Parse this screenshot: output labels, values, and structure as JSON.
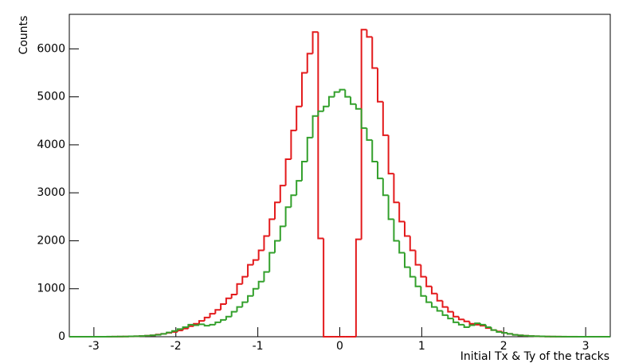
{
  "chart_data": {
    "type": "histogram",
    "xlabel": "Initial Tx & Ty of the tracks",
    "ylabel": "Counts",
    "bins": [
      -3.3,
      -3.234,
      -3.168,
      -3.102,
      -3.036,
      -2.97,
      -2.904,
      -2.838,
      -2.772,
      -2.706,
      -2.64,
      -2.574,
      -2.508,
      -2.442,
      -2.376,
      -2.31,
      -2.244,
      -2.178,
      -2.112,
      -2.046,
      -1.98,
      -1.914,
      -1.848,
      -1.782,
      -1.716,
      -1.65,
      -1.584,
      -1.518,
      -1.452,
      -1.386,
      -1.32,
      -1.254,
      -1.188,
      -1.122,
      -1.056,
      -0.99,
      -0.924,
      -0.858,
      -0.792,
      -0.726,
      -0.66,
      -0.594,
      -0.528,
      -0.462,
      -0.396,
      -0.33,
      -0.264,
      -0.198,
      -0.132,
      -0.066,
      0,
      0.066,
      0.132,
      0.198,
      0.264,
      0.33,
      0.396,
      0.462,
      0.528,
      0.594,
      0.66,
      0.726,
      0.792,
      0.858,
      0.924,
      0.99,
      1.056,
      1.122,
      1.188,
      1.254,
      1.32,
      1.386,
      1.452,
      1.518,
      1.584,
      1.65,
      1.716,
      1.782,
      1.848,
      1.914,
      1.98,
      2.046,
      2.112,
      2.178,
      2.244,
      2.31,
      2.376,
      2.442,
      2.508,
      2.574,
      2.64,
      2.706,
      2.772,
      2.838,
      2.904,
      2.97,
      3.036,
      3.102,
      3.168,
      3.234,
      3.3
    ],
    "series": [
      {
        "color": "#e31a1c",
        "values": [
          0,
          0,
          0,
          0,
          0,
          0,
          0,
          1,
          2,
          3,
          4,
          6,
          10,
          15,
          20,
          30,
          45,
          60,
          80,
          100,
          130,
          170,
          220,
          270,
          330,
          400,
          480,
          560,
          680,
          800,
          880,
          1100,
          1250,
          1500,
          1600,
          1800,
          2100,
          2450,
          2800,
          3150,
          3700,
          4300,
          4800,
          5500,
          5900,
          6350,
          2050,
          0,
          0,
          0,
          0,
          0,
          0,
          2030,
          6400,
          6250,
          5600,
          4900,
          4200,
          3400,
          2800,
          2400,
          2100,
          1800,
          1500,
          1250,
          1050,
          900,
          750,
          620,
          520,
          420,
          360,
          320,
          270,
          250,
          230,
          180,
          140,
          110,
          80,
          60,
          40,
          30,
          20,
          15,
          10,
          6,
          4,
          3,
          2,
          1,
          1,
          0,
          0,
          0,
          0,
          0,
          0,
          0
        ]
      },
      {
        "color": "#33a02c",
        "values": [
          0,
          0,
          0,
          0,
          0,
          0,
          1,
          2,
          3,
          4,
          5,
          8,
          10,
          15,
          20,
          30,
          40,
          60,
          90,
          120,
          160,
          200,
          250,
          240,
          260,
          230,
          250,
          300,
          350,
          420,
          520,
          620,
          720,
          850,
          1000,
          1150,
          1350,
          1750,
          2000,
          2300,
          2700,
          2950,
          3250,
          3650,
          4150,
          4600,
          4700,
          4800,
          5000,
          5100,
          5150,
          5000,
          4850,
          4750,
          4350,
          4100,
          3650,
          3300,
          2950,
          2450,
          2000,
          1750,
          1450,
          1250,
          1050,
          850,
          720,
          620,
          540,
          450,
          380,
          300,
          250,
          200,
          240,
          280,
          250,
          200,
          140,
          100,
          80,
          60,
          40,
          30,
          20,
          15,
          10,
          8,
          5,
          4,
          3,
          2,
          1,
          1,
          0,
          0,
          0,
          0,
          0,
          0
        ]
      }
    ],
    "xlim": [
      -3.3,
      3.3
    ],
    "xticks": [
      -3,
      -2,
      -1,
      0,
      1,
      2,
      3
    ],
    "ylim": [
      0,
      6720
    ],
    "yticks": [
      0,
      1000,
      2000,
      3000,
      4000,
      5000,
      6000
    ]
  }
}
